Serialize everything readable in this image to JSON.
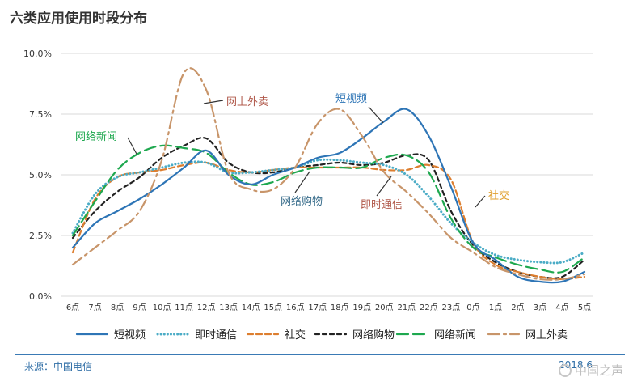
{
  "colors": {
    "short_video": "#2e75b6",
    "instant_messaging": "#4bacc6",
    "social": "#dd7e2f",
    "online_shopping": "#222222",
    "online_news": "#1ea84f",
    "food_delivery": "#c8956a",
    "grid": "#d9d9d9",
    "axis_text": "#333333"
  },
  "footer": {
    "source": "来源：中国电信",
    "date": "2018.6",
    "watermark": "中国之声"
  },
  "chart_data": {
    "type": "line",
    "title": "六类应用使用时段分布",
    "xlabel": "",
    "ylabel": "",
    "categories": [
      "6点",
      "7点",
      "8点",
      "9点",
      "10点",
      "11点",
      "12点",
      "13点",
      "14点",
      "15点",
      "16点",
      "17点",
      "18点",
      "19点",
      "20点",
      "21点",
      "22点",
      "23点",
      "0点",
      "1点",
      "2点",
      "3点",
      "4点",
      "5点"
    ],
    "ylim": [
      0,
      10
    ],
    "yticks": [
      0,
      2.5,
      5.0,
      7.5,
      10.0
    ],
    "ytick_labels": [
      "0.0%",
      "2.5%",
      "5.0%",
      "7.5%",
      "10.0%"
    ],
    "grid": true,
    "legend_position": "bottom",
    "series": [
      {
        "key": "short_video",
        "name": "短视频",
        "style": "solid",
        "values": [
          2.0,
          3.0,
          3.5,
          4.0,
          4.6,
          5.3,
          6.0,
          5.0,
          4.6,
          5.0,
          5.3,
          5.7,
          5.9,
          6.5,
          7.2,
          7.7,
          6.6,
          4.5,
          2.2,
          1.5,
          0.8,
          0.6,
          0.6,
          1.0
        ]
      },
      {
        "key": "instant_messaging",
        "name": "即时通信",
        "style": "dotted",
        "values": [
          2.6,
          4.2,
          4.9,
          5.1,
          5.3,
          5.5,
          5.5,
          5.1,
          5.1,
          5.2,
          5.3,
          5.6,
          5.6,
          5.5,
          5.4,
          5.0,
          4.1,
          3.0,
          2.2,
          1.7,
          1.5,
          1.4,
          1.4,
          1.8
        ]
      },
      {
        "key": "social",
        "name": "社交",
        "style": "dashed",
        "values": [
          1.8,
          4.0,
          4.9,
          5.1,
          5.2,
          5.4,
          5.5,
          5.2,
          5.1,
          5.2,
          5.3,
          5.3,
          5.3,
          5.3,
          5.2,
          5.2,
          5.4,
          4.8,
          2.2,
          1.3,
          1.0,
          0.8,
          0.7,
          0.8
        ]
      },
      {
        "key": "online_shopping",
        "name": "网络购物",
        "style": "short-dash",
        "values": [
          2.4,
          3.5,
          4.3,
          4.9,
          5.7,
          6.2,
          6.5,
          5.5,
          5.1,
          5.1,
          5.3,
          5.4,
          5.5,
          5.4,
          5.5,
          5.8,
          5.6,
          3.5,
          2.1,
          1.4,
          1.0,
          0.8,
          0.8,
          1.5
        ]
      },
      {
        "key": "online_news",
        "name": "网络新闻",
        "style": "long-dash",
        "values": [
          2.5,
          3.9,
          5.2,
          5.9,
          6.2,
          6.1,
          5.9,
          5.1,
          4.6,
          4.7,
          5.1,
          5.3,
          5.3,
          5.3,
          5.7,
          5.8,
          5.1,
          3.2,
          2.0,
          1.6,
          1.3,
          1.1,
          1.0,
          1.6
        ]
      },
      {
        "key": "food_delivery",
        "name": "网上外卖",
        "style": "dash-dot",
        "values": [
          1.3,
          2.0,
          2.7,
          3.5,
          5.6,
          9.2,
          8.5,
          5.1,
          4.4,
          4.4,
          5.3,
          7.1,
          7.7,
          6.6,
          5.1,
          4.3,
          3.4,
          2.4,
          1.8,
          1.2,
          0.9,
          0.7,
          0.7,
          0.9
        ]
      }
    ],
    "annotations": [
      {
        "series": "food_delivery",
        "text": "网上外卖",
        "color": "#b0584a"
      },
      {
        "series": "short_video",
        "text": "短视频",
        "color": "#2e75b6"
      },
      {
        "series": "online_news",
        "text": "网络新闻",
        "color": "#1ea84f"
      },
      {
        "series": "social",
        "text": "社交",
        "color": "#e0a030"
      },
      {
        "series": "online_shopping",
        "text": "网络购物",
        "color": "#3a6e8c"
      },
      {
        "series": "instant_messaging",
        "text": "即时通信",
        "color": "#b0584a"
      }
    ]
  }
}
